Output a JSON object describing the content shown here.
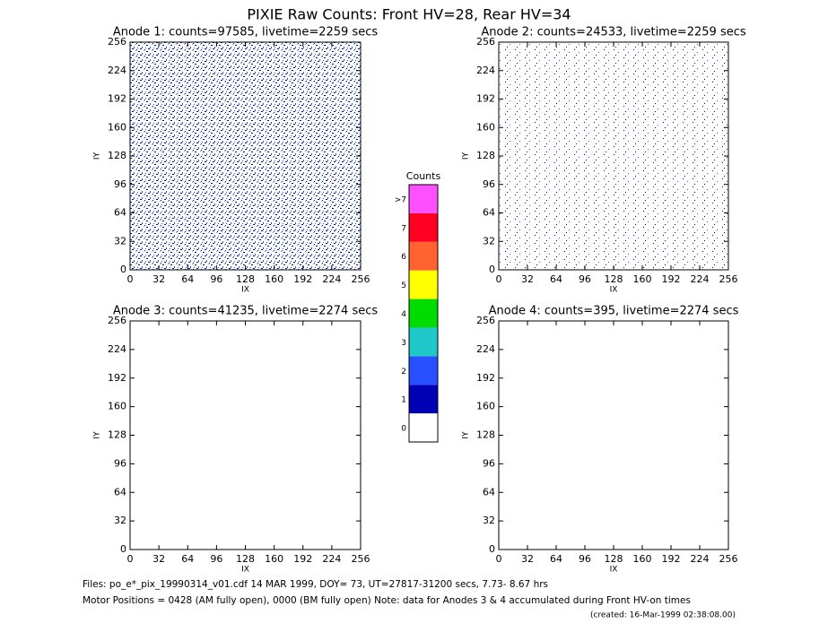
{
  "title": "PIXIE Raw Counts:  Front HV=28, Rear HV=34",
  "chart_data": [
    {
      "type": "heatmap",
      "title": "Anode 1: counts=97585, livetime=2259 secs",
      "xlabel": "IX",
      "ylabel": "IY",
      "xlim": [
        0,
        256
      ],
      "ylim": [
        0,
        256
      ],
      "xticks": [
        0,
        32,
        64,
        96,
        128,
        160,
        192,
        224,
        256
      ],
      "yticks": [
        0,
        32,
        64,
        96,
        128,
        160,
        192,
        224,
        256
      ]
    },
    {
      "type": "heatmap",
      "title": "Anode 2: counts=24533, livetime=2259 secs",
      "xlabel": "IX",
      "ylabel": "IY",
      "xlim": [
        0,
        256
      ],
      "ylim": [
        0,
        256
      ],
      "xticks": [
        0,
        32,
        64,
        96,
        128,
        160,
        192,
        224,
        256
      ],
      "yticks": [
        0,
        32,
        64,
        96,
        128,
        160,
        192,
        224,
        256
      ]
    },
    {
      "type": "heatmap",
      "title": "Anode 3: counts=41235, livetime=2274 secs",
      "xlabel": "IX",
      "ylabel": "IY",
      "xlim": [
        0,
        256
      ],
      "ylim": [
        0,
        256
      ],
      "xticks": [
        0,
        32,
        64,
        96,
        128,
        160,
        192,
        224,
        256
      ],
      "yticks": [
        0,
        32,
        64,
        96,
        128,
        160,
        192,
        224,
        256
      ]
    },
    {
      "type": "heatmap",
      "title": "Anode 4: counts=395, livetime=2274 secs",
      "xlabel": "IX",
      "ylabel": "IY",
      "xlim": [
        0,
        256
      ],
      "ylim": [
        0,
        256
      ],
      "xticks": [
        0,
        32,
        64,
        96,
        128,
        160,
        192,
        224,
        256
      ],
      "yticks": [
        0,
        32,
        64,
        96,
        128,
        160,
        192,
        224,
        256
      ]
    }
  ],
  "legend": {
    "title": "Counts",
    "labels": [
      "0",
      "1",
      "2",
      "3",
      "4",
      "5",
      "6",
      "7",
      ">7"
    ],
    "colors": [
      "#ffffff",
      "#0000b4",
      "#2850ff",
      "#1ec8c8",
      "#00dc00",
      "#ffff00",
      "#ff6430",
      "#ff0020",
      "#ff50ff"
    ]
  },
  "footer": [
    "Files: po_e*_pix_19990314_v01.cdf    14 MAR 1999, DOY= 73, UT=27817-31200 secs,  7.73- 8.67 hrs",
    "Motor Positions = 0428 (AM fully open), 0000 (BM fully open)    Note: data for Anodes 3 & 4 accumulated during Front HV-on times",
    "(created: 16-Mar-1999 02:38:08.00)"
  ]
}
